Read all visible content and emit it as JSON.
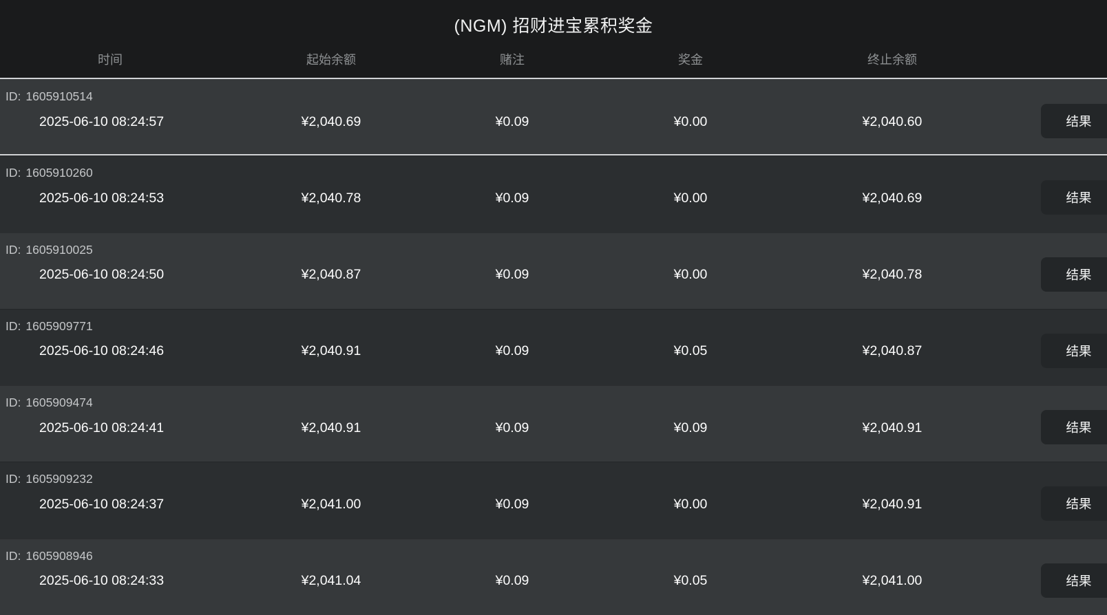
{
  "page": {
    "title": "(NGM) 招财进宝累积奖金"
  },
  "table": {
    "columns": [
      "时间",
      "起始余额",
      "赌注",
      "奖金",
      "终止余额"
    ],
    "id_prefix": "ID:",
    "action_label": "结果",
    "rows": [
      {
        "id": "1605910514",
        "time": "2025-06-10 08:24:57",
        "start_balance": "¥2,040.69",
        "bet": "¥0.09",
        "prize": "¥0.00",
        "end_balance": "¥2,040.60"
      },
      {
        "id": "1605910260",
        "time": "2025-06-10 08:24:53",
        "start_balance": "¥2,040.78",
        "bet": "¥0.09",
        "prize": "¥0.00",
        "end_balance": "¥2,040.69"
      },
      {
        "id": "1605910025",
        "time": "2025-06-10 08:24:50",
        "start_balance": "¥2,040.87",
        "bet": "¥0.09",
        "prize": "¥0.00",
        "end_balance": "¥2,040.78"
      },
      {
        "id": "1605909771",
        "time": "2025-06-10 08:24:46",
        "start_balance": "¥2,040.91",
        "bet": "¥0.09",
        "prize": "¥0.05",
        "end_balance": "¥2,040.87"
      },
      {
        "id": "1605909474",
        "time": "2025-06-10 08:24:41",
        "start_balance": "¥2,040.91",
        "bet": "¥0.09",
        "prize": "¥0.09",
        "end_balance": "¥2,040.91"
      },
      {
        "id": "1605909232",
        "time": "2025-06-10 08:24:37",
        "start_balance": "¥2,041.00",
        "bet": "¥0.09",
        "prize": "¥0.00",
        "end_balance": "¥2,040.91"
      },
      {
        "id": "1605908946",
        "time": "2025-06-10 08:24:33",
        "start_balance": "¥2,041.04",
        "bet": "¥0.09",
        "prize": "¥0.05",
        "end_balance": "¥2,041.00"
      }
    ]
  },
  "colors": {
    "header_bg": "#1a1b1c",
    "stripe_light": "#36393b",
    "stripe_dark": "#2b2e30",
    "divider": "#d2d4d6",
    "button_bg": "#232628",
    "text_primary": "#fdfdfd",
    "text_muted": "#8d9092",
    "text_id": "#c4c6c8"
  }
}
